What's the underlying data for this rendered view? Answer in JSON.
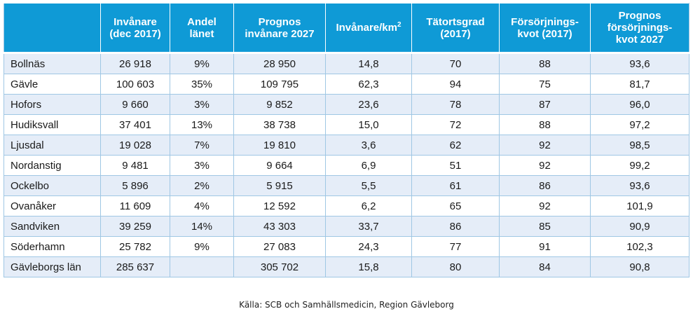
{
  "table": {
    "headers": [
      {
        "line1": "",
        "line2": "",
        "line3": ""
      },
      {
        "line1": "Invånare",
        "line2": "(dec 2017)",
        "line3": ""
      },
      {
        "line1": "Andel",
        "line2": "länet",
        "line3": ""
      },
      {
        "line1": "Prognos",
        "line2": "invånare 2027",
        "line3": ""
      },
      {
        "line1": "Invånare/km",
        "sup": "2",
        "line2": "",
        "line3": ""
      },
      {
        "line1": "Tätortsgrad",
        "line2": "(2017)",
        "line3": ""
      },
      {
        "line1": "Försörjnings-",
        "line2": "kvot (2017)",
        "line3": ""
      },
      {
        "line1": "Prognos",
        "line2": "försörjnings-",
        "line3": "kvot 2027"
      }
    ],
    "rows": [
      [
        "Bollnäs",
        "26 918",
        "9%",
        "28 950",
        "14,8",
        "70",
        "88",
        "93,6"
      ],
      [
        "Gävle",
        "100 603",
        "35%",
        "109 795",
        "62,3",
        "94",
        "75",
        "81,7"
      ],
      [
        "Hofors",
        "9 660",
        "3%",
        "9 852",
        "23,6",
        "78",
        "87",
        "96,0"
      ],
      [
        "Hudiksvall",
        "37 401",
        "13%",
        "38 738",
        "15,0",
        "72",
        "88",
        "97,2"
      ],
      [
        "Ljusdal",
        "19 028",
        "7%",
        "19 810",
        "3,6",
        "62",
        "92",
        "98,5"
      ],
      [
        "Nordanstig",
        "9 481",
        "3%",
        "9 664",
        "6,9",
        "51",
        "92",
        "99,2"
      ],
      [
        "Ockelbo",
        "5 896",
        "2%",
        "5 915",
        "5,5",
        "61",
        "86",
        "93,6"
      ],
      [
        "Ovanåker",
        "11 609",
        "4%",
        "12 592",
        "6,2",
        "65",
        "92",
        "101,9"
      ],
      [
        "Sandviken",
        "39 259",
        "14%",
        "43 303",
        "33,7",
        "86",
        "85",
        "90,9"
      ],
      [
        "Söderhamn",
        "25 782",
        "9%",
        "27 083",
        "24,3",
        "77",
        "91",
        "102,3"
      ],
      [
        "Gävleborgs län",
        "285 637",
        "",
        "305 702",
        "15,8",
        "80",
        "84",
        "90,8"
      ]
    ]
  },
  "source": "Källa: SCB och Samhällsmedicin, Region Gävleborg",
  "colors": {
    "header": "#0f9ad6",
    "stripe": "#e5edf8",
    "border": "#9fc7e4"
  }
}
